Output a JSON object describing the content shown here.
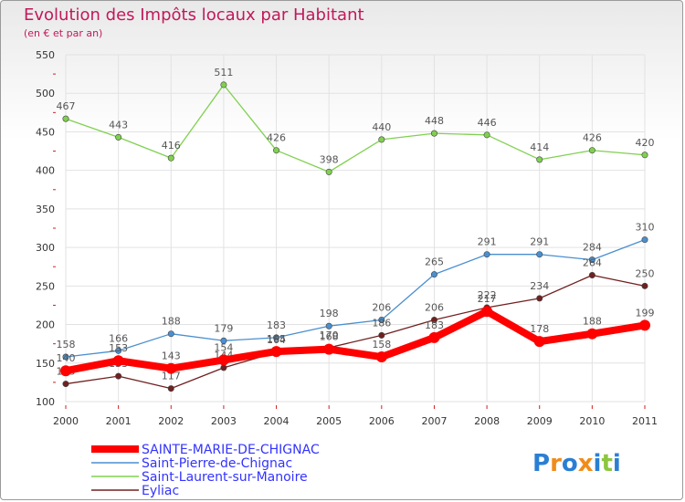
{
  "chart_data": {
    "type": "line",
    "title": "Evolution des Impôts locaux par Habitant",
    "subtitle": "(en € et par an)",
    "xlabel": "",
    "ylabel": "",
    "categories": [
      "2000",
      "2001",
      "2002",
      "2003",
      "2004",
      "2005",
      "2006",
      "2007",
      "2008",
      "2009",
      "2010",
      "2011"
    ],
    "ylim": [
      100,
      550
    ],
    "yticks": [
      100,
      150,
      200,
      250,
      300,
      350,
      400,
      450,
      500,
      550
    ],
    "grid": true,
    "legend_position": "bottom",
    "series": [
      {
        "name": "SAINTE-MARIE-DE-CHIGNAC",
        "color": "#ff0000",
        "values": [
          140,
          153,
          143,
          154,
          165,
          168,
          158,
          183,
          217,
          178,
          188,
          199
        ]
      },
      {
        "name": "Saint-Pierre-de-Chignac",
        "color": "#4a8fd0",
        "values": [
          158,
          166,
          188,
          179,
          183,
          198,
          206,
          265,
          291,
          291,
          284,
          310
        ]
      },
      {
        "name": "Saint-Laurent-sur-Manoire",
        "color": "#80d050",
        "values": [
          467,
          443,
          416,
          511,
          426,
          398,
          440,
          448,
          446,
          414,
          426,
          420
        ]
      },
      {
        "name": "Eyliac",
        "color": "#702020",
        "values": [
          123,
          133,
          117,
          144,
          164,
          170,
          186,
          206,
          222,
          234,
          264,
          250
        ]
      }
    ]
  },
  "logo": {
    "text": "Proxiti"
  }
}
